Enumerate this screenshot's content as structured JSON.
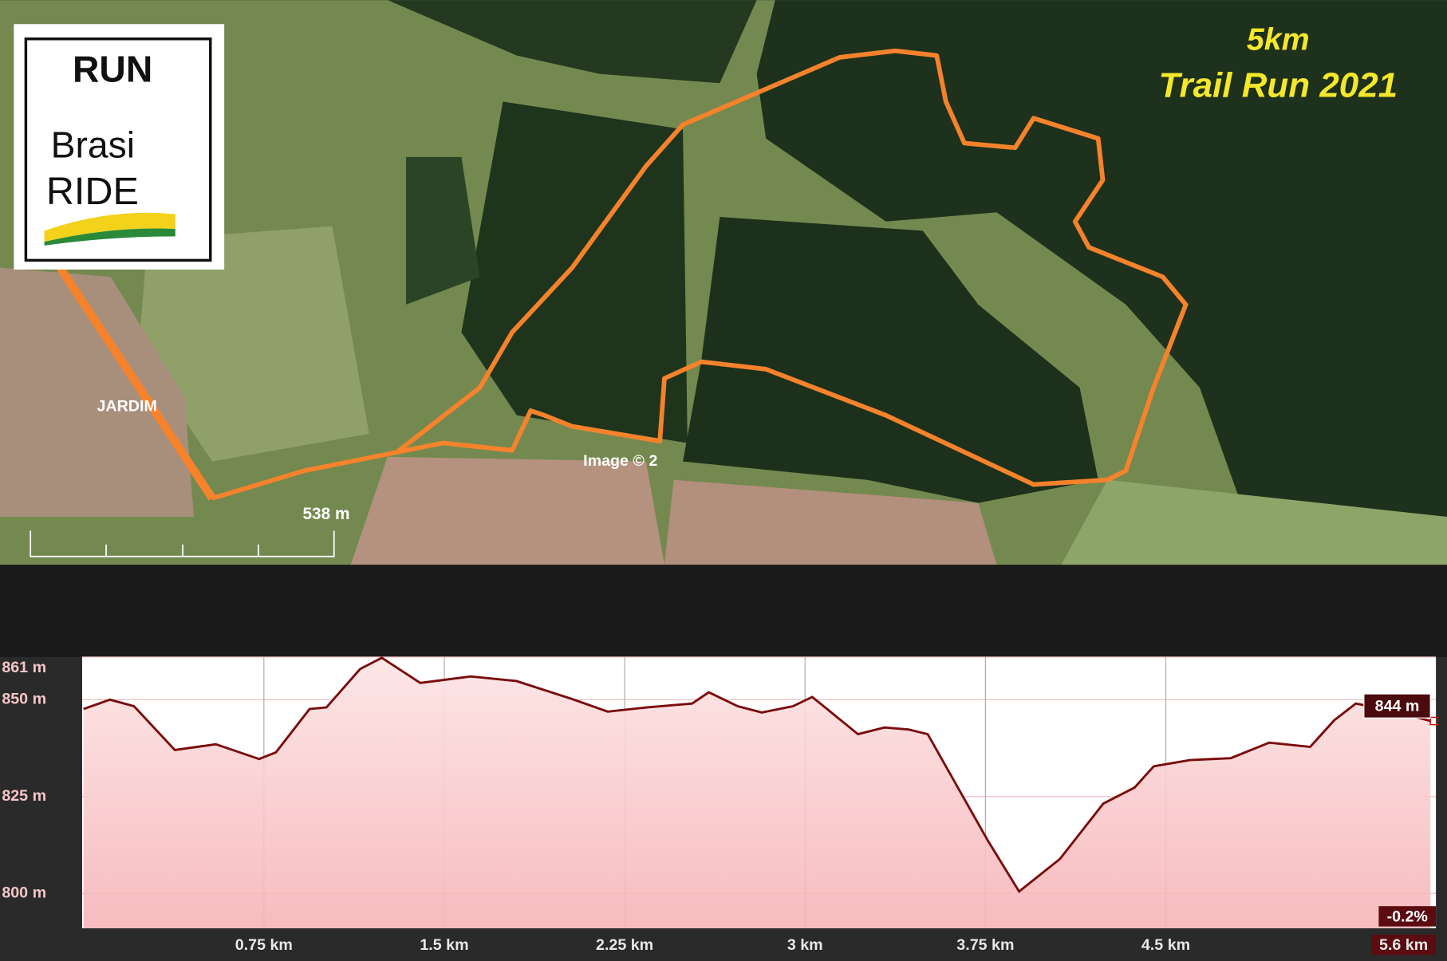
{
  "map": {
    "title": "5km",
    "subtitle": "Trail Run 2021",
    "logo_top": "RUN",
    "logo_word1": "Brasi",
    "logo_word2": "RIDE",
    "place_label": "JARDIM",
    "copyright": "Image © 2",
    "scale_label": "538 m"
  },
  "chart_data": {
    "type": "area",
    "x": [
      0,
      0.11,
      0.21,
      0.38,
      0.55,
      0.73,
      0.8,
      0.94,
      1.01,
      1.15,
      1.24,
      1.4,
      1.61,
      1.8,
      2.03,
      2.18,
      2.34,
      2.53,
      2.6,
      2.72,
      2.82,
      2.95,
      3.03,
      3.22,
      3.33,
      3.43,
      3.51,
      3.76,
      3.89,
      4.06,
      4.24,
      4.37,
      4.45,
      4.6,
      4.77,
      4.93,
      5.1,
      5.2,
      5.29,
      5.41,
      5.6
    ],
    "series": [
      {
        "color": "#7a0c0c",
        "values": [
          847.6,
          850,
          848.3,
          837,
          838.5,
          834.7,
          836.4,
          847.6,
          848,
          857.9,
          860.8,
          854.3,
          856,
          854.8,
          850.2,
          846.9,
          848,
          849,
          851.9,
          848.3,
          846.7,
          848.3,
          850.7,
          841.1,
          842.8,
          842.3,
          841.1,
          813.6,
          800.5,
          808.9,
          823.2,
          827.3,
          832.8,
          834.4,
          834.9,
          838.9,
          837.8,
          844.7,
          849,
          847.6,
          844.5
        ]
      }
    ],
    "xlim": [
      0,
      5.6
    ],
    "ylim": [
      791,
      861
    ],
    "xticks": [
      {
        "value": 0.75,
        "label": "0.75 km"
      },
      {
        "value": 1.5,
        "label": "1.5 km"
      },
      {
        "value": 2.25,
        "label": "2.25 km"
      },
      {
        "value": 3,
        "label": "3 km"
      },
      {
        "value": 3.75,
        "label": "3.75 km"
      },
      {
        "value": 4.5,
        "label": "4.5 km"
      },
      {
        "value": 5.6,
        "label": "5.6 km"
      }
    ],
    "yticks": [
      {
        "value": 800,
        "label": "800 m"
      },
      {
        "value": 825,
        "label": "825 m"
      },
      {
        "value": 850,
        "label": "850 m"
      },
      {
        "value": 861,
        "label": "861 m"
      }
    ],
    "grid": true,
    "marker_label": "844 m",
    "grade_label": "-0.2%"
  }
}
